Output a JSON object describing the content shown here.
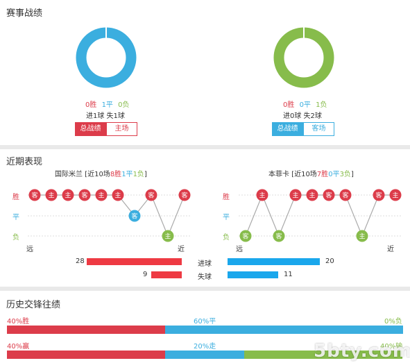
{
  "section1": {
    "title": "赛事战绩",
    "left": {
      "wins": "0胜",
      "draws": "1平",
      "losses": "0负",
      "goals": "进1球 失1球",
      "tab_active": "总战绩",
      "tab_inactive": "主场",
      "color": "#3baedf"
    },
    "right": {
      "wins": "0胜",
      "draws": "0平",
      "losses": "1负",
      "goals": "进0球 失2球",
      "tab_active": "总战绩",
      "tab_inactive": "客场",
      "color": "#87bc4b"
    }
  },
  "section2": {
    "title": "近期表现",
    "row_labels": {
      "win": "胜",
      "draw": "平",
      "loss": "负"
    },
    "left": {
      "team_prefix": "国际米兰 [近10场",
      "w": "8胜",
      "d": "1平",
      "l": "1负",
      "suffix": "]",
      "far": "远",
      "near": "近",
      "matches": [
        {
          "r": "W",
          "v": "客"
        },
        {
          "r": "W",
          "v": "主"
        },
        {
          "r": "W",
          "v": "主"
        },
        {
          "r": "W",
          "v": "客"
        },
        {
          "r": "W",
          "v": "主"
        },
        {
          "r": "W",
          "v": "主"
        },
        {
          "r": "D",
          "v": "客"
        },
        {
          "r": "W",
          "v": "客"
        },
        {
          "r": "L",
          "v": "主"
        },
        {
          "r": "W",
          "v": "客"
        }
      ]
    },
    "right": {
      "team_prefix": "本菲卡 [近10场",
      "w": "7胜",
      "d": "0平",
      "l": "3负",
      "suffix": "]",
      "far": "远",
      "near": "近",
      "matches": [
        {
          "r": "L",
          "v": "客"
        },
        {
          "r": "W",
          "v": "主"
        },
        {
          "r": "L",
          "v": "客"
        },
        {
          "r": "W",
          "v": "主"
        },
        {
          "r": "W",
          "v": "主"
        },
        {
          "r": "W",
          "v": "客"
        },
        {
          "r": "W",
          "v": "客"
        },
        {
          "r": "L",
          "v": "主"
        },
        {
          "r": "W",
          "v": "客"
        },
        {
          "r": "W",
          "v": "主"
        }
      ]
    },
    "stats": {
      "goals_label": "进球",
      "conceded_label": "失球",
      "left_goals": 28,
      "left_conceded": 9,
      "right_goals": 20,
      "right_conceded": 11,
      "left_color": "#ee3a43",
      "right_color": "#1aa7ec"
    },
    "colors": {
      "win": "#dc3c4a",
      "draw": "#3baedf",
      "loss": "#87bc4b"
    }
  },
  "section3": {
    "title": "历史交锋往绩",
    "row1": {
      "left": "40%胜",
      "mid": "60%平",
      "right": "0%负",
      "values": [
        40,
        60,
        0
      ]
    },
    "row2": {
      "left": "40%赢",
      "mid": "20%走",
      "right": "40%输",
      "values": [
        40,
        20,
        40
      ]
    },
    "colors": [
      "#dc3c4a",
      "#3baedf",
      "#87bc4b"
    ],
    "watermark": "5bty.com"
  }
}
